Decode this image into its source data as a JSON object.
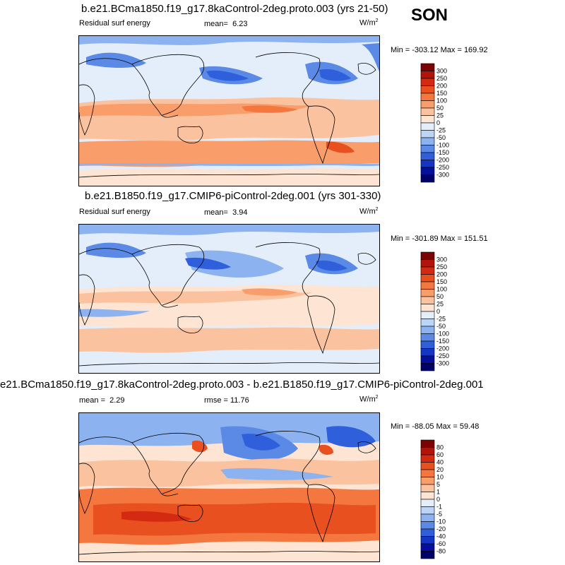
{
  "season": "SON",
  "panels": [
    {
      "title": "b.e21.BCma1850.f19_g17.8kaControl-2deg.proto.003 (yrs 21-50)",
      "variable": "Residual surf energy",
      "stat_label": "mean=",
      "stat_value": "6.23",
      "units": "W/m",
      "units_exp": "2",
      "minmax": "Min = -303.12 Max = 169.92",
      "levels": [
        "300",
        "250",
        "200",
        "150",
        "100",
        "50",
        "25",
        "0",
        "-25",
        "-50",
        "-100",
        "-150",
        "-200",
        "-250",
        "-300"
      ]
    },
    {
      "title": "b.e21.B1850.f19_g17.CMIP6-piControl-2deg.001 (yrs 301-330)",
      "variable": "Residual surf energy",
      "stat_label": "mean=",
      "stat_value": "3.94",
      "units": "W/m",
      "units_exp": "2",
      "minmax": "Min = -301.89 Max = 151.51",
      "levels": [
        "300",
        "250",
        "200",
        "150",
        "100",
        "50",
        "25",
        "0",
        "-25",
        "-50",
        "-100",
        "-150",
        "-200",
        "-250",
        "-300"
      ]
    },
    {
      "title": "e21.BCma1850.f19_g17.8kaControl-2deg.proto.003 - b.e21.B1850.f19_g17.CMIP6-piControl-2deg.001",
      "stat_label": "mean =",
      "stat_value": "2.29",
      "rmse_label": "rmse =",
      "rmse_value": "11.76",
      "units": "W/m",
      "units_exp": "2",
      "minmax": "Min = -88.05 Max =  59.48",
      "levels": [
        "80",
        "60",
        "40",
        "20",
        "10",
        "5",
        "1",
        "0",
        "-1",
        "-5",
        "-10",
        "-20",
        "-40",
        "-60",
        "-80"
      ]
    }
  ],
  "colors": {
    "scale": [
      "#7a0403",
      "#b0140b",
      "#d42a12",
      "#e8501f",
      "#f4773f",
      "#f99d6b",
      "#fbc29f",
      "#fde4d3",
      "#e3eefa",
      "#bcd4f6",
      "#8cb2ef",
      "#5a8ae6",
      "#2f5fdb",
      "#1535c4",
      "#050f9e",
      "#00006a"
    ],
    "ocean_warm": "#f7b99a",
    "ocean_pale": "#fbd8c4",
    "cool": "#a9c4f1",
    "cold": "#3a6fe0",
    "land": "#e8f0fb"
  },
  "chart_data": [
    {
      "type": "heatmap",
      "title": "b.e21.BCma1850.f19_g17.8kaControl-2deg.proto.003 (yrs 21-50)",
      "variable": "Residual surf energy",
      "units": "W/m2",
      "mean": 6.23,
      "min": -303.12,
      "max": 169.92,
      "contour_levels": [
        -300,
        -250,
        -200,
        -150,
        -100,
        -50,
        -25,
        0,
        25,
        50,
        100,
        150,
        200,
        250,
        300
      ],
      "projection": "global cylindrical equidistant, Pacific-centered"
    },
    {
      "type": "heatmap",
      "title": "b.e21.B1850.f19_g17.CMIP6-piControl-2deg.001 (yrs 301-330)",
      "variable": "Residual surf energy",
      "units": "W/m2",
      "mean": 3.94,
      "min": -301.89,
      "max": 151.51,
      "contour_levels": [
        -300,
        -250,
        -200,
        -150,
        -100,
        -50,
        -25,
        0,
        25,
        50,
        100,
        150,
        200,
        250,
        300
      ],
      "projection": "global cylindrical equidistant, Pacific-centered"
    },
    {
      "type": "heatmap",
      "title": "e21.BCma1850.f19_g17.8kaControl-2deg.proto.003 - b.e21.B1850.f19_g17.CMIP6-piControl-2deg.001",
      "units": "W/m2",
      "mean": 2.29,
      "rmse": 11.76,
      "min": -88.05,
      "max": 59.48,
      "contour_levels": [
        -80,
        -60,
        -40,
        -20,
        -10,
        -5,
        -1,
        0,
        1,
        5,
        10,
        20,
        40,
        60,
        80
      ],
      "projection": "global cylindrical equidistant, Pacific-centered"
    }
  ]
}
